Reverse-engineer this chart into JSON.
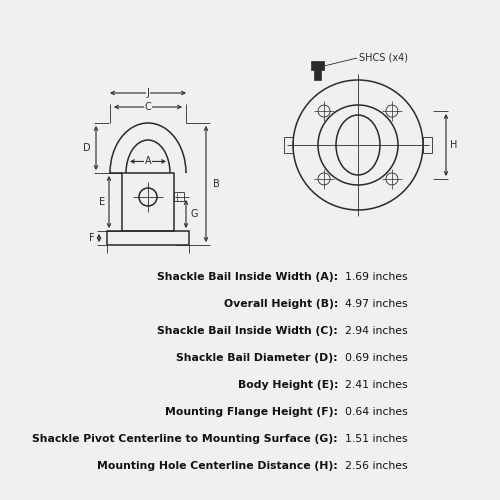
{
  "bg_color": "#f0f0f0",
  "specs": [
    {
      "label": "Shackle Bail Inside Width (A):",
      "value": "1.69 inches"
    },
    {
      "label": "Overall Height (B):",
      "value": "4.97 inches"
    },
    {
      "label": "Shackle Bail Inside Width (C):",
      "value": "2.94 inches"
    },
    {
      "label": "Shackle Bail Diameter (D):",
      "value": "0.69 inches"
    },
    {
      "label": "Body Height (E):",
      "value": "2.41 inches"
    },
    {
      "label": "Mounting Flange Height (F):",
      "value": "0.64 inches"
    },
    {
      "label": "Shackle Pivot Centerline to Mounting Surface (G):",
      "value": "1.51 inches"
    },
    {
      "label": "Mounting Hole Centerline Distance (H):",
      "value": "2.56 inches"
    }
  ],
  "line_color": "#2a2a2a",
  "label_fontsize": 7.8,
  "diagram_scale": 1.0
}
